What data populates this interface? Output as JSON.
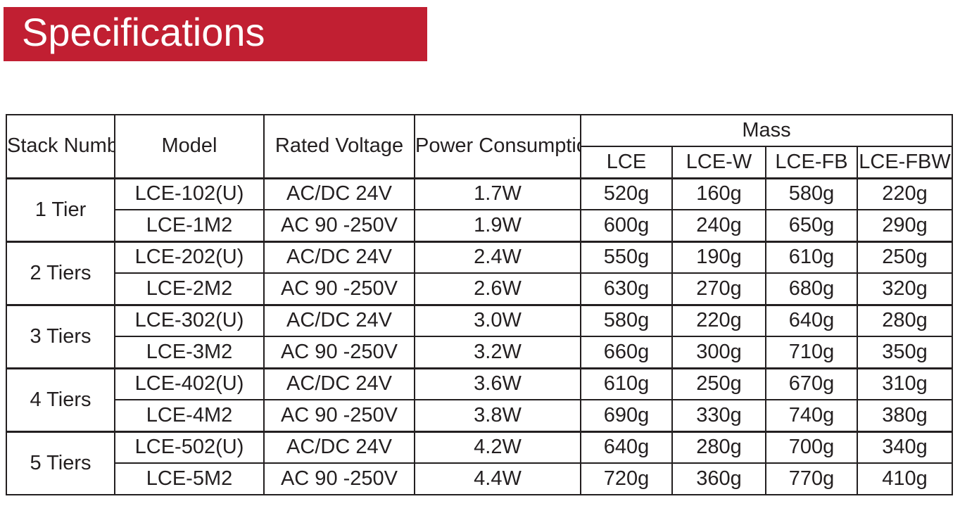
{
  "title": "Specifications",
  "colors": {
    "banner": "#c11f32",
    "banner_text": "#ffffff",
    "text": "#231f20",
    "border": "#231f20"
  },
  "table": {
    "headers": {
      "stack_number": "Stack Number",
      "model": "Model",
      "rated_voltage": "Rated Voltage",
      "power_consumption": "Power Consumption",
      "mass": "Mass",
      "mass_sub": [
        "LCE",
        "LCE-W",
        "LCE-FB",
        "LCE-FBW"
      ]
    },
    "groups": [
      {
        "stack": "1 Tier",
        "rows": [
          {
            "model": "LCE-102(U)",
            "voltage": "AC/DC 24V",
            "power": "1.7W",
            "mass": [
              "520g",
              "160g",
              "580g",
              "220g"
            ]
          },
          {
            "model": "LCE-1M2",
            "voltage": "AC 90 -250V",
            "power": "1.9W",
            "mass": [
              "600g",
              "240g",
              "650g",
              "290g"
            ]
          }
        ]
      },
      {
        "stack": "2 Tiers",
        "rows": [
          {
            "model": "LCE-202(U)",
            "voltage": "AC/DC 24V",
            "power": "2.4W",
            "mass": [
              "550g",
              "190g",
              "610g",
              "250g"
            ]
          },
          {
            "model": "LCE-2M2",
            "voltage": "AC 90 -250V",
            "power": "2.6W",
            "mass": [
              "630g",
              "270g",
              "680g",
              "320g"
            ]
          }
        ]
      },
      {
        "stack": "3 Tiers",
        "rows": [
          {
            "model": "LCE-302(U)",
            "voltage": "AC/DC 24V",
            "power": "3.0W",
            "mass": [
              "580g",
              "220g",
              "640g",
              "280g"
            ]
          },
          {
            "model": "LCE-3M2",
            "voltage": "AC 90 -250V",
            "power": "3.2W",
            "mass": [
              "660g",
              "300g",
              "710g",
              "350g"
            ]
          }
        ]
      },
      {
        "stack": "4 Tiers",
        "rows": [
          {
            "model": "LCE-402(U)",
            "voltage": "AC/DC 24V",
            "power": "3.6W",
            "mass": [
              "610g",
              "250g",
              "670g",
              "310g"
            ]
          },
          {
            "model": "LCE-4M2",
            "voltage": "AC 90 -250V",
            "power": "3.8W",
            "mass": [
              "690g",
              "330g",
              "740g",
              "380g"
            ]
          }
        ]
      },
      {
        "stack": "5 Tiers",
        "rows": [
          {
            "model": "LCE-502(U)",
            "voltage": "AC/DC 24V",
            "power": "4.2W",
            "mass": [
              "640g",
              "280g",
              "700g",
              "340g"
            ]
          },
          {
            "model": "LCE-5M2",
            "voltage": "AC 90 -250V",
            "power": "4.4W",
            "mass": [
              "720g",
              "360g",
              "770g",
              "410g"
            ]
          }
        ]
      }
    ]
  }
}
